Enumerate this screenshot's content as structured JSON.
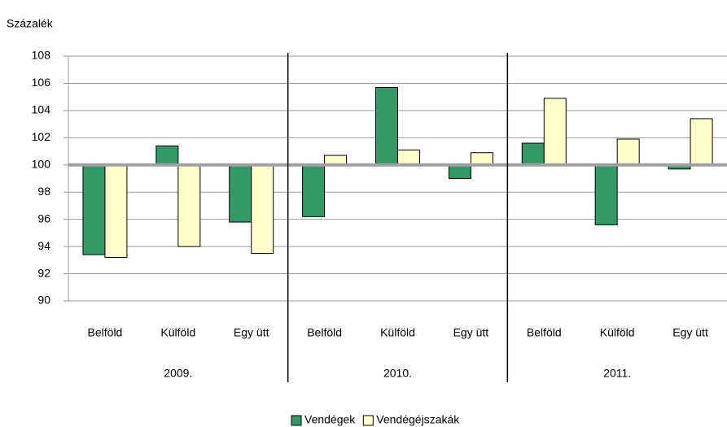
{
  "chart_data": {
    "type": "bar",
    "ylabel": "Százalék",
    "categories": [
      "Belföld",
      "Külföld",
      "Egy ütt",
      "Belföld",
      "Külföld",
      "Egy ütt",
      "Belföld",
      "Külföld",
      "Egy ütt"
    ],
    "groups": [
      "2009.",
      "2010.",
      "2011."
    ],
    "series": [
      {
        "name": "Vendégek",
        "color": "#339966",
        "values": [
          93.4,
          101.4,
          95.8,
          96.2,
          105.7,
          99.0,
          101.6,
          95.6,
          99.7
        ]
      },
      {
        "name": "Vendégéjszakák",
        "color": "#ffffcc",
        "values": [
          93.2,
          94.0,
          93.5,
          100.7,
          101.1,
          100.9,
          104.9,
          101.9,
          103.4
        ]
      }
    ],
    "baseline": 100,
    "ylim": [
      90,
      108
    ],
    "yticks": [
      90,
      92,
      94,
      96,
      98,
      100,
      102,
      104,
      106,
      108
    ],
    "grid": true
  }
}
